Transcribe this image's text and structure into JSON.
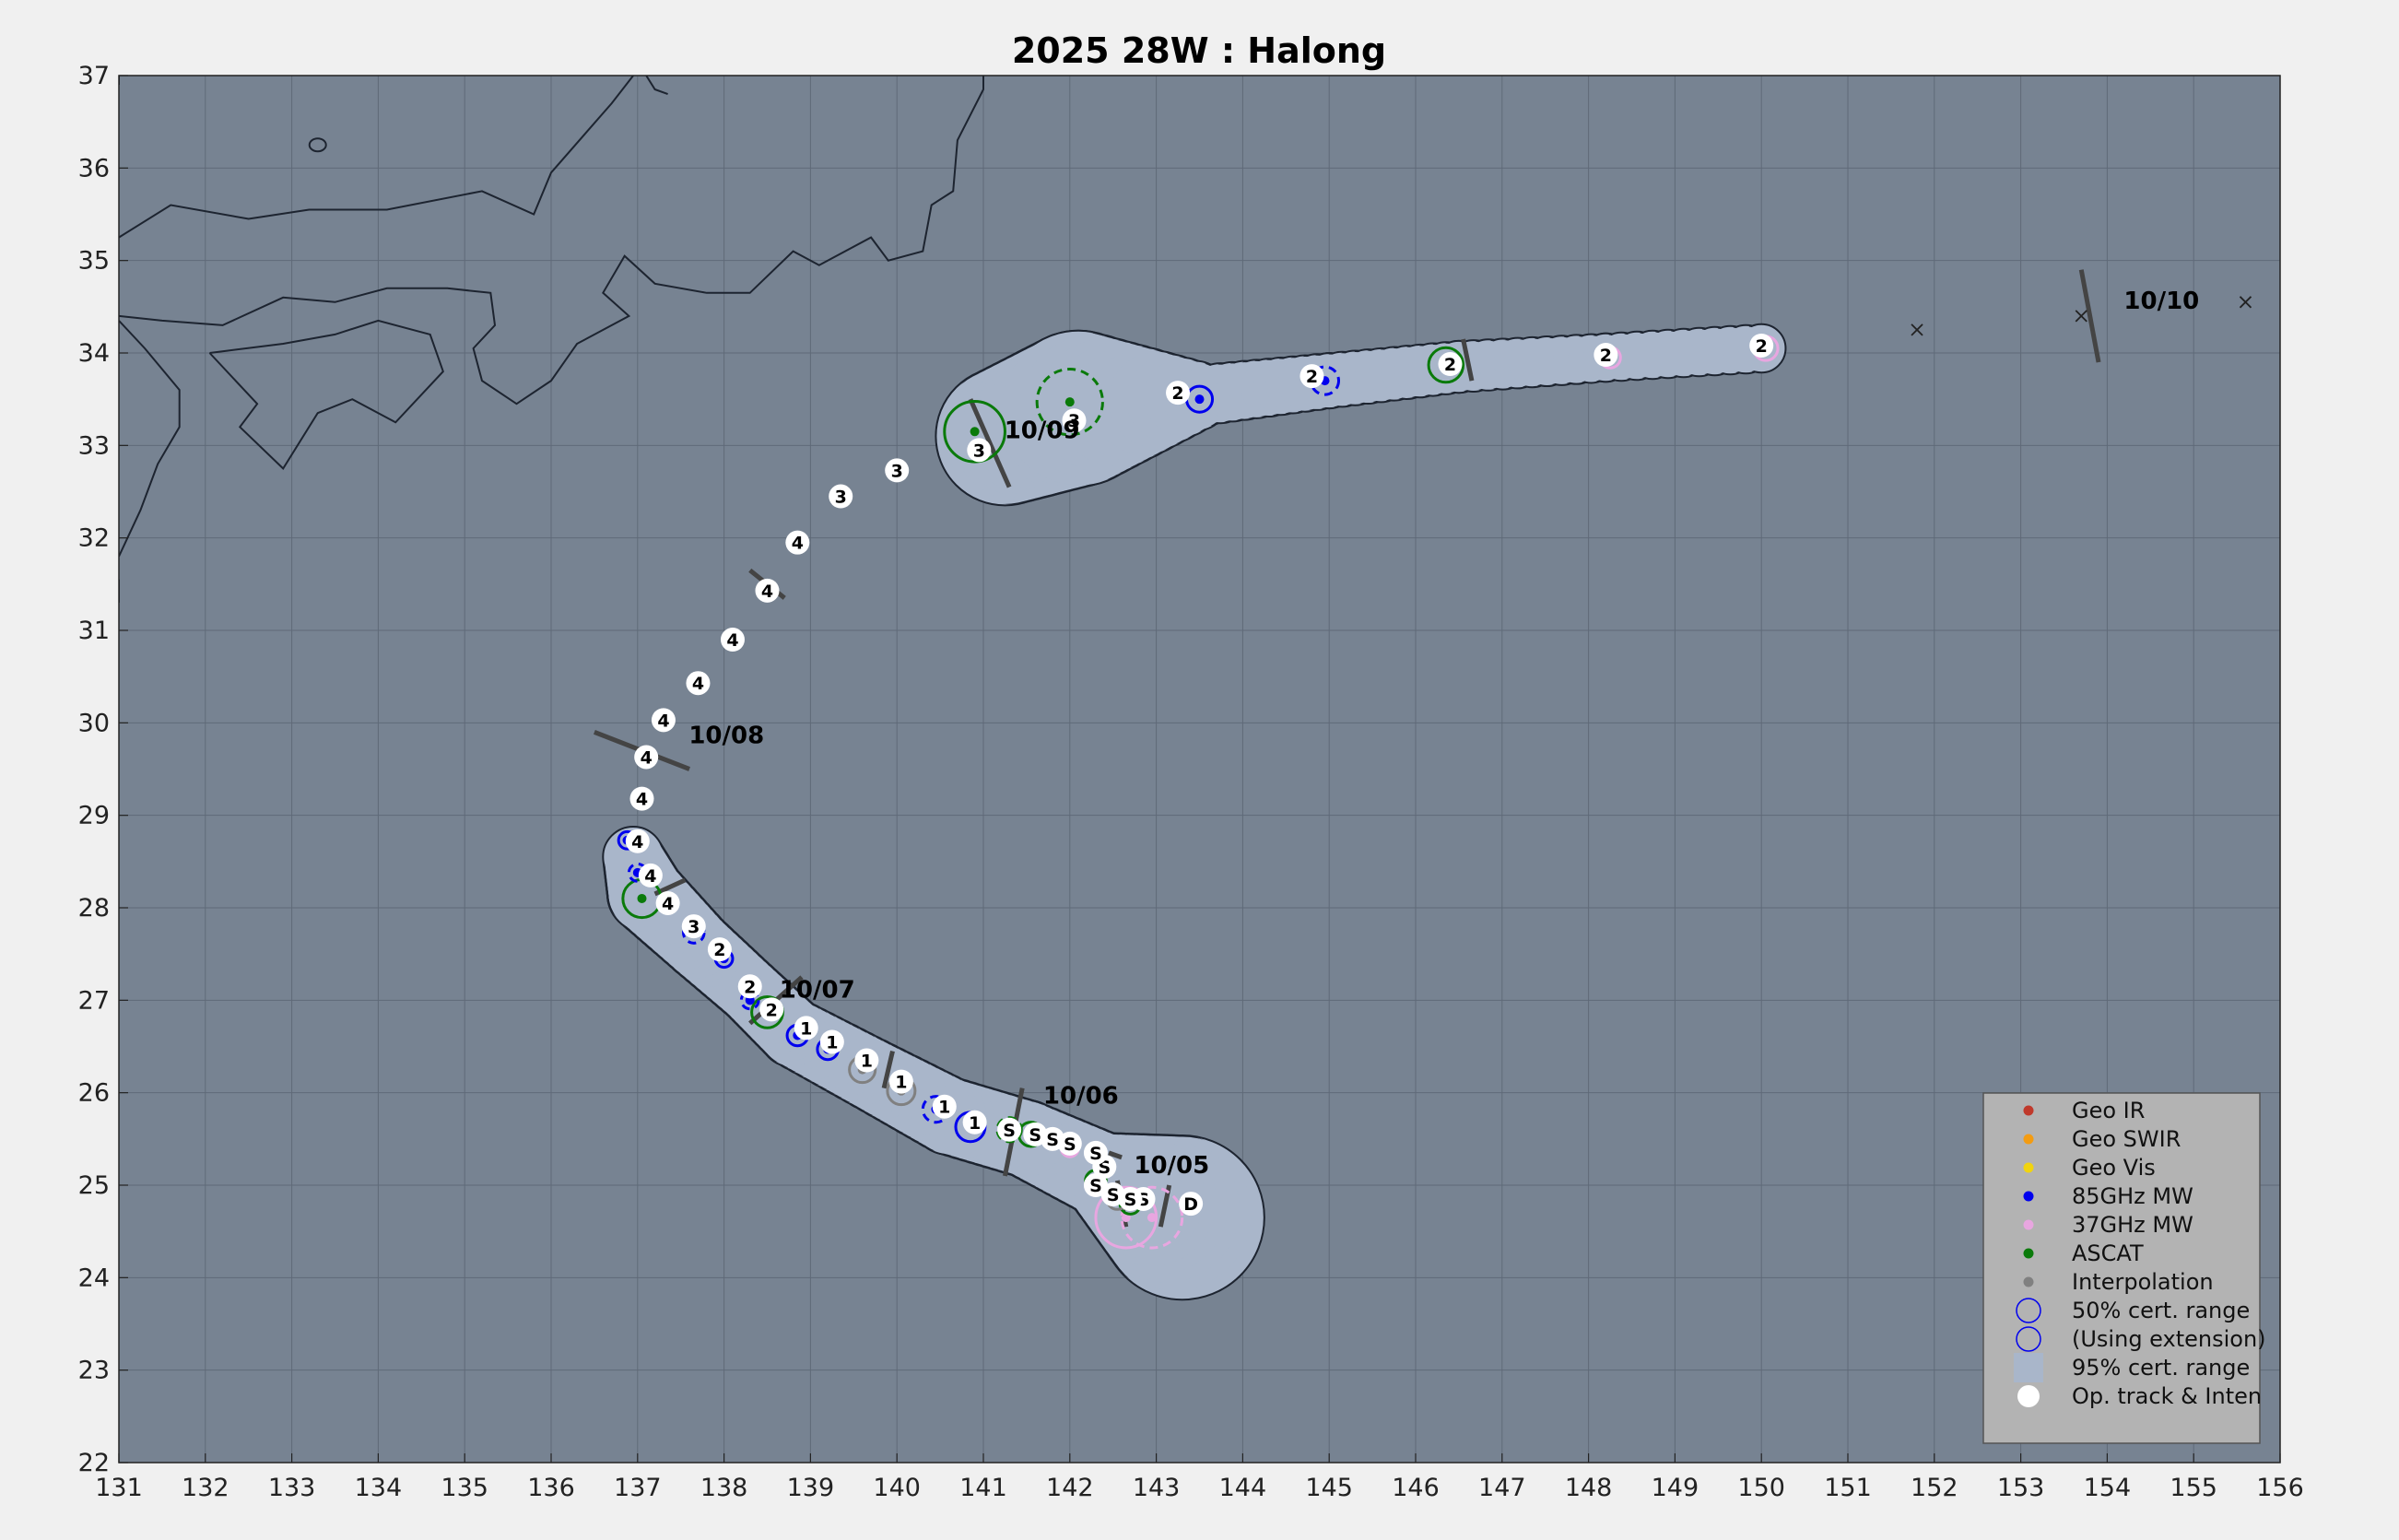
{
  "title": "2025  28W :  Halong",
  "colors": {
    "background": "#f0f0f0",
    "ocean": "#778392",
    "grid": "#5f6a78",
    "cone": "#a9b6ca",
    "coast": "#1d2430",
    "geo_ir": "#c0392b",
    "geo_swir": "#f39c12",
    "geo_vis": "#f1d40f",
    "mw85": "#0000ee",
    "mw37": "#e8a6e0",
    "ascat": "#0a7a0a",
    "interp": "#808080",
    "legend_bg": "#b3b3b3"
  },
  "chart_data": {
    "type": "map-track",
    "xlim": [
      131,
      156
    ],
    "ylim": [
      22,
      37
    ],
    "x_ticks": [
      "131",
      "132",
      "133",
      "134",
      "135",
      "136",
      "137",
      "138",
      "139",
      "140",
      "141",
      "142",
      "143",
      "144",
      "145",
      "146",
      "147",
      "148",
      "149",
      "150",
      "151",
      "152",
      "153",
      "154",
      "155",
      "156"
    ],
    "y_ticks": [
      "22",
      "23",
      "24",
      "25",
      "26",
      "27",
      "28",
      "29",
      "30",
      "31",
      "32",
      "33",
      "34",
      "35",
      "36",
      "37"
    ],
    "track": [
      {
        "lon": 143.4,
        "lat": 24.8,
        "label": "D"
      },
      {
        "lon": 142.85,
        "lat": 24.85,
        "label": "S"
      },
      {
        "lon": 142.7,
        "lat": 24.85,
        "label": "S"
      },
      {
        "lon": 142.5,
        "lat": 24.9,
        "label": "S"
      },
      {
        "lon": 142.3,
        "lat": 25.0,
        "label": "S"
      },
      {
        "lon": 142.4,
        "lat": 25.2,
        "label": "S"
      },
      {
        "lon": 142.3,
        "lat": 25.35,
        "label": "S"
      },
      {
        "lon": 142.0,
        "lat": 25.45,
        "label": "S"
      },
      {
        "lon": 141.8,
        "lat": 25.5,
        "label": "S"
      },
      {
        "lon": 141.6,
        "lat": 25.55,
        "label": "S"
      },
      {
        "lon": 141.3,
        "lat": 25.6,
        "label": "S"
      },
      {
        "lon": 140.9,
        "lat": 25.68,
        "label": "1"
      },
      {
        "lon": 140.55,
        "lat": 25.85,
        "label": "1"
      },
      {
        "lon": 140.05,
        "lat": 26.12,
        "label": "1"
      },
      {
        "lon": 139.65,
        "lat": 26.35,
        "label": "1"
      },
      {
        "lon": 139.25,
        "lat": 26.55,
        "label": "1"
      },
      {
        "lon": 138.95,
        "lat": 26.7,
        "label": "1"
      },
      {
        "lon": 138.55,
        "lat": 26.9,
        "label": "2"
      },
      {
        "lon": 138.3,
        "lat": 27.15,
        "label": "2"
      },
      {
        "lon": 137.95,
        "lat": 27.55,
        "label": "2"
      },
      {
        "lon": 137.65,
        "lat": 27.8,
        "label": "3"
      },
      {
        "lon": 137.35,
        "lat": 28.05,
        "label": "4"
      },
      {
        "lon": 137.15,
        "lat": 28.35,
        "label": "4"
      },
      {
        "lon": 137.0,
        "lat": 28.72,
        "label": "4"
      },
      {
        "lon": 137.05,
        "lat": 29.18,
        "label": "4"
      },
      {
        "lon": 137.1,
        "lat": 29.63,
        "label": "4"
      },
      {
        "lon": 137.3,
        "lat": 30.03,
        "label": "4"
      },
      {
        "lon": 137.7,
        "lat": 30.43,
        "label": "4"
      },
      {
        "lon": 138.1,
        "lat": 30.9,
        "label": "4"
      },
      {
        "lon": 138.5,
        "lat": 31.43,
        "label": "4"
      },
      {
        "lon": 138.85,
        "lat": 31.95,
        "label": "4"
      },
      {
        "lon": 139.35,
        "lat": 32.45,
        "label": "3"
      },
      {
        "lon": 140.0,
        "lat": 32.73,
        "label": "3"
      },
      {
        "lon": 140.95,
        "lat": 32.95,
        "label": "3"
      },
      {
        "lon": 142.05,
        "lat": 33.27,
        "label": "3"
      },
      {
        "lon": 143.25,
        "lat": 33.57,
        "label": "2"
      },
      {
        "lon": 144.8,
        "lat": 33.75,
        "label": "2"
      },
      {
        "lon": 146.4,
        "lat": 33.88,
        "label": "2"
      },
      {
        "lon": 148.2,
        "lat": 33.98,
        "label": "2"
      },
      {
        "lon": 150.0,
        "lat": 34.08,
        "label": "2"
      }
    ],
    "forecast_points": [
      {
        "lon": 151.8,
        "lat": 34.25
      },
      {
        "lon": 153.7,
        "lat": 34.4
      },
      {
        "lon": 155.6,
        "lat": 34.55
      }
    ],
    "date_labels": [
      {
        "text": "10/05",
        "lon": 142.55,
        "lat": 25.05
      },
      {
        "text": "10/06",
        "lon": 141.5,
        "lat": 25.8
      },
      {
        "text": "10/07",
        "lon": 138.45,
        "lat": 26.95
      },
      {
        "text": "10/08",
        "lon": 137.4,
        "lat": 29.7
      },
      {
        "text": "10/09",
        "lon": 141.05,
        "lat": 33.0
      },
      {
        "text": "10/10",
        "lon": 154.0,
        "lat": 34.4
      }
    ],
    "fixes": [
      {
        "type": "mw37",
        "lon": 142.95,
        "lat": 24.65,
        "r": 0.35,
        "ext": true
      },
      {
        "type": "mw37",
        "lon": 142.65,
        "lat": 24.65,
        "r": 0.35,
        "ext": false
      },
      {
        "type": "ascat",
        "lon": 142.7,
        "lat": 24.8,
        "r": 0.12,
        "ext": false
      },
      {
        "type": "interp",
        "lon": 142.55,
        "lat": 24.85,
        "r": 0.12,
        "ext": false
      },
      {
        "type": "ascat",
        "lon": 142.3,
        "lat": 25.05,
        "r": 0.12,
        "ext": false
      },
      {
        "type": "ascat",
        "lon": 142.4,
        "lat": 25.2,
        "r": 0.1,
        "ext": false
      },
      {
        "type": "mw37",
        "lon": 142.0,
        "lat": 25.4,
        "r": 0.1,
        "ext": false
      },
      {
        "type": "interp",
        "lon": 141.8,
        "lat": 25.5,
        "r": 0.1,
        "ext": false
      },
      {
        "type": "ascat",
        "lon": 141.55,
        "lat": 25.55,
        "r": 0.14,
        "ext": false
      },
      {
        "type": "ascat",
        "lon": 141.3,
        "lat": 25.6,
        "r": 0.14,
        "ext": true
      },
      {
        "type": "mw85",
        "lon": 140.85,
        "lat": 25.63,
        "r": 0.17,
        "ext": false
      },
      {
        "type": "mw85",
        "lon": 140.45,
        "lat": 25.82,
        "r": 0.15,
        "ext": true
      },
      {
        "type": "interp",
        "lon": 140.05,
        "lat": 26.02,
        "r": 0.16,
        "ext": false
      },
      {
        "type": "interp",
        "lon": 139.6,
        "lat": 26.25,
        "r": 0.15,
        "ext": false
      },
      {
        "type": "mw85",
        "lon": 139.2,
        "lat": 26.47,
        "r": 0.12,
        "ext": false
      },
      {
        "type": "mw85",
        "lon": 138.85,
        "lat": 26.62,
        "r": 0.12,
        "ext": false
      },
      {
        "type": "ascat",
        "lon": 138.5,
        "lat": 26.87,
        "r": 0.18,
        "ext": false
      },
      {
        "type": "mw85",
        "lon": 138.3,
        "lat": 27.0,
        "r": 0.1,
        "ext": true
      },
      {
        "type": "mw85",
        "lon": 138.0,
        "lat": 27.45,
        "r": 0.1,
        "ext": false
      },
      {
        "type": "mw85",
        "lon": 137.65,
        "lat": 27.73,
        "r": 0.12,
        "ext": true
      },
      {
        "type": "ascat",
        "lon": 137.05,
        "lat": 28.1,
        "r": 0.22,
        "ext": false
      },
      {
        "type": "mw85",
        "lon": 137.0,
        "lat": 28.38,
        "r": 0.1,
        "ext": true
      },
      {
        "type": "mw85",
        "lon": 136.88,
        "lat": 28.73,
        "r": 0.1,
        "ext": false
      },
      {
        "type": "ascat",
        "lon": 140.9,
        "lat": 33.15,
        "r": 0.35,
        "ext": false
      },
      {
        "type": "ascat",
        "lon": 142.0,
        "lat": 33.47,
        "r": 0.38,
        "ext": true
      },
      {
        "type": "mw85",
        "lon": 143.5,
        "lat": 33.5,
        "r": 0.15,
        "ext": false
      },
      {
        "type": "mw85",
        "lon": 144.95,
        "lat": 33.7,
        "r": 0.16,
        "ext": true
      },
      {
        "type": "ascat",
        "lon": 146.35,
        "lat": 33.87,
        "r": 0.2,
        "ext": false
      },
      {
        "type": "mw37",
        "lon": 148.25,
        "lat": 33.95,
        "r": 0.12,
        "ext": false
      },
      {
        "type": "mw37",
        "lon": 150.05,
        "lat": 34.05,
        "r": 0.14,
        "ext": false
      }
    ],
    "legend": {
      "position": "bottom-right",
      "items": [
        {
          "label": "Geo IR",
          "key": "geo_ir"
        },
        {
          "label": "Geo SWIR",
          "key": "geo_swir"
        },
        {
          "label": "Geo Vis",
          "key": "geo_vis"
        },
        {
          "label": "85GHz MW",
          "key": "mw85"
        },
        {
          "label": "37GHz MW",
          "key": "mw37"
        },
        {
          "label": "ASCAT",
          "key": "ascat"
        },
        {
          "label": "Interpolation",
          "key": "interp"
        },
        {
          "label": "50% cert. range",
          "key": "circle"
        },
        {
          "label": "(Using extension)",
          "key": "circle-ext"
        },
        {
          "label": "95% cert. range",
          "key": "cone"
        },
        {
          "label": "Op. track & Inten",
          "key": "track"
        }
      ]
    }
  }
}
